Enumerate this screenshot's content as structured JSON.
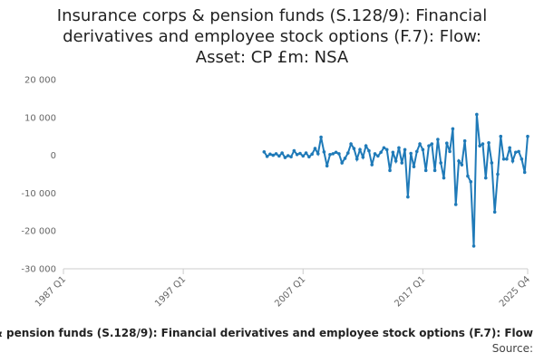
{
  "chart_data": {
    "type": "line",
    "title": "Insurance corps & pension funds (S.128/9): Financial derivatives and employee stock options (F.7): Flow: Asset: CP £m: NSA",
    "footer": "& pension funds (S.128/9): Financial derivatives and employee stock options (F.7): Flow",
    "source": "Source:",
    "color": "#1f7ab8",
    "grid": false,
    "ylim": [
      -30000,
      20000
    ],
    "yticks": [
      {
        "value": -30000,
        "label": "-30 000"
      },
      {
        "value": -20000,
        "label": "-20 000"
      },
      {
        "value": -10000,
        "label": "-10 000"
      },
      0,
      {
        "value": 10000,
        "label": "10 000"
      },
      {
        "value": 20000,
        "label": "20 000"
      }
    ],
    "categories": [
      "1987 Q1",
      null,
      null,
      null,
      null,
      null,
      null,
      null,
      null,
      null,
      null,
      null,
      null,
      null,
      null,
      null,
      null,
      null,
      null,
      null,
      null,
      null,
      null,
      null,
      null,
      null,
      null,
      null,
      null,
      null,
      null,
      null,
      null,
      null,
      null,
      null,
      null,
      null,
      null,
      null,
      "1997 Q1",
      null,
      null,
      null,
      null,
      null,
      null,
      null,
      null,
      null,
      null,
      null,
      null,
      null,
      null,
      null,
      null,
      null,
      null,
      null,
      null,
      null,
      null,
      null,
      null,
      null,
      null,
      null,
      null,
      null,
      null,
      null,
      null,
      null,
      null,
      null,
      null,
      null,
      null,
      null,
      "2007 Q1",
      null,
      null,
      null,
      null,
      null,
      null,
      null,
      null,
      null,
      null,
      null,
      null,
      null,
      null,
      null,
      null,
      null,
      null,
      null,
      null,
      null,
      null,
      null,
      null,
      null,
      null,
      null,
      null,
      null,
      null,
      null,
      null,
      null,
      null,
      null,
      null,
      null,
      null,
      null,
      "2017 Q1",
      null,
      null,
      null,
      null,
      null,
      null,
      null,
      null,
      null,
      null,
      null,
      null,
      null,
      null,
      null,
      null,
      null,
      null,
      null,
      null,
      null,
      null,
      null,
      null,
      null,
      null,
      null,
      null,
      null,
      null,
      null,
      null,
      null,
      null,
      "2025 Q4"
    ],
    "values": [
      null,
      null,
      null,
      null,
      null,
      null,
      null,
      null,
      null,
      null,
      null,
      null,
      null,
      null,
      null,
      null,
      null,
      null,
      null,
      null,
      null,
      null,
      null,
      null,
      null,
      null,
      null,
      null,
      null,
      null,
      null,
      null,
      null,
      null,
      null,
      null,
      null,
      null,
      null,
      null,
      null,
      null,
      null,
      null,
      null,
      null,
      null,
      null,
      null,
      null,
      null,
      null,
      null,
      null,
      null,
      null,
      null,
      null,
      null,
      null,
      null,
      null,
      null,
      null,
      null,
      null,
      null,
      900,
      -300,
      300,
      0,
      400,
      -200,
      600,
      -600,
      -100,
      -400,
      1200,
      200,
      500,
      -200,
      600,
      -400,
      300,
      1800,
      400,
      4800,
      900,
      -2800,
      200,
      400,
      800,
      400,
      -2000,
      -800,
      600,
      3000,
      1800,
      -1000,
      1500,
      -500,
      2500,
      1200,
      -2500,
      400,
      -200,
      800,
      2000,
      1500,
      -4000,
      800,
      -1500,
      2000,
      -2000,
      1500,
      -11000,
      500,
      -3000,
      1000,
      3000,
      1500,
      -4000,
      2500,
      3000,
      -4000,
      4200,
      -2000,
      -6000,
      3200,
      1000,
      7000,
      -13000,
      -1500,
      -2500,
      3800,
      -5500,
      -7000,
      -24000,
      10800,
      2500,
      3000,
      -6000,
      3300,
      -2000,
      -15000,
      -5000,
      5000,
      -1000,
      -1000,
      2000,
      -1500,
      800,
      1000,
      -1000,
      -4500,
      5000
    ]
  }
}
